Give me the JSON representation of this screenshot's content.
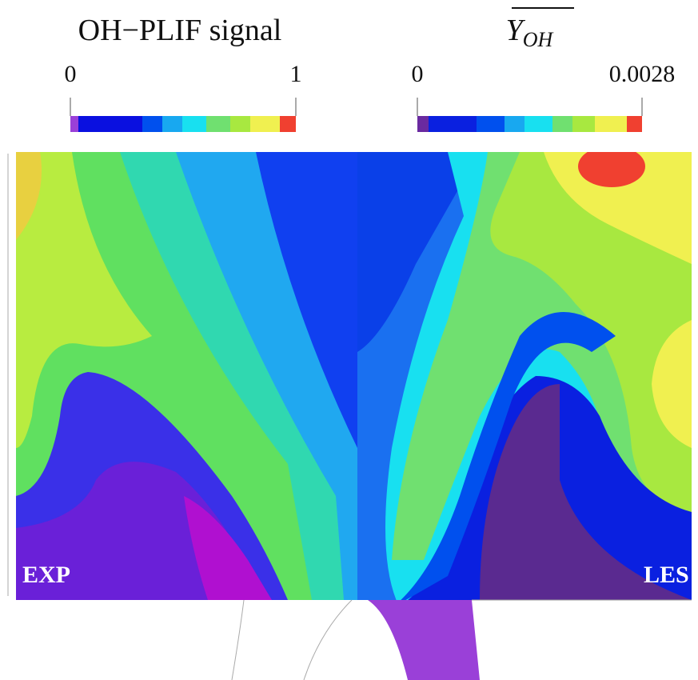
{
  "colorbars": [
    {
      "title": "OH−PLIF signal",
      "min_label": "0",
      "max_label": "1"
    },
    {
      "title": "Y",
      "subscript": "OH",
      "min_label": "0",
      "max_label": "0.0028"
    }
  ],
  "panels": [
    {
      "label": "EXP"
    },
    {
      "label": "LES"
    }
  ]
}
